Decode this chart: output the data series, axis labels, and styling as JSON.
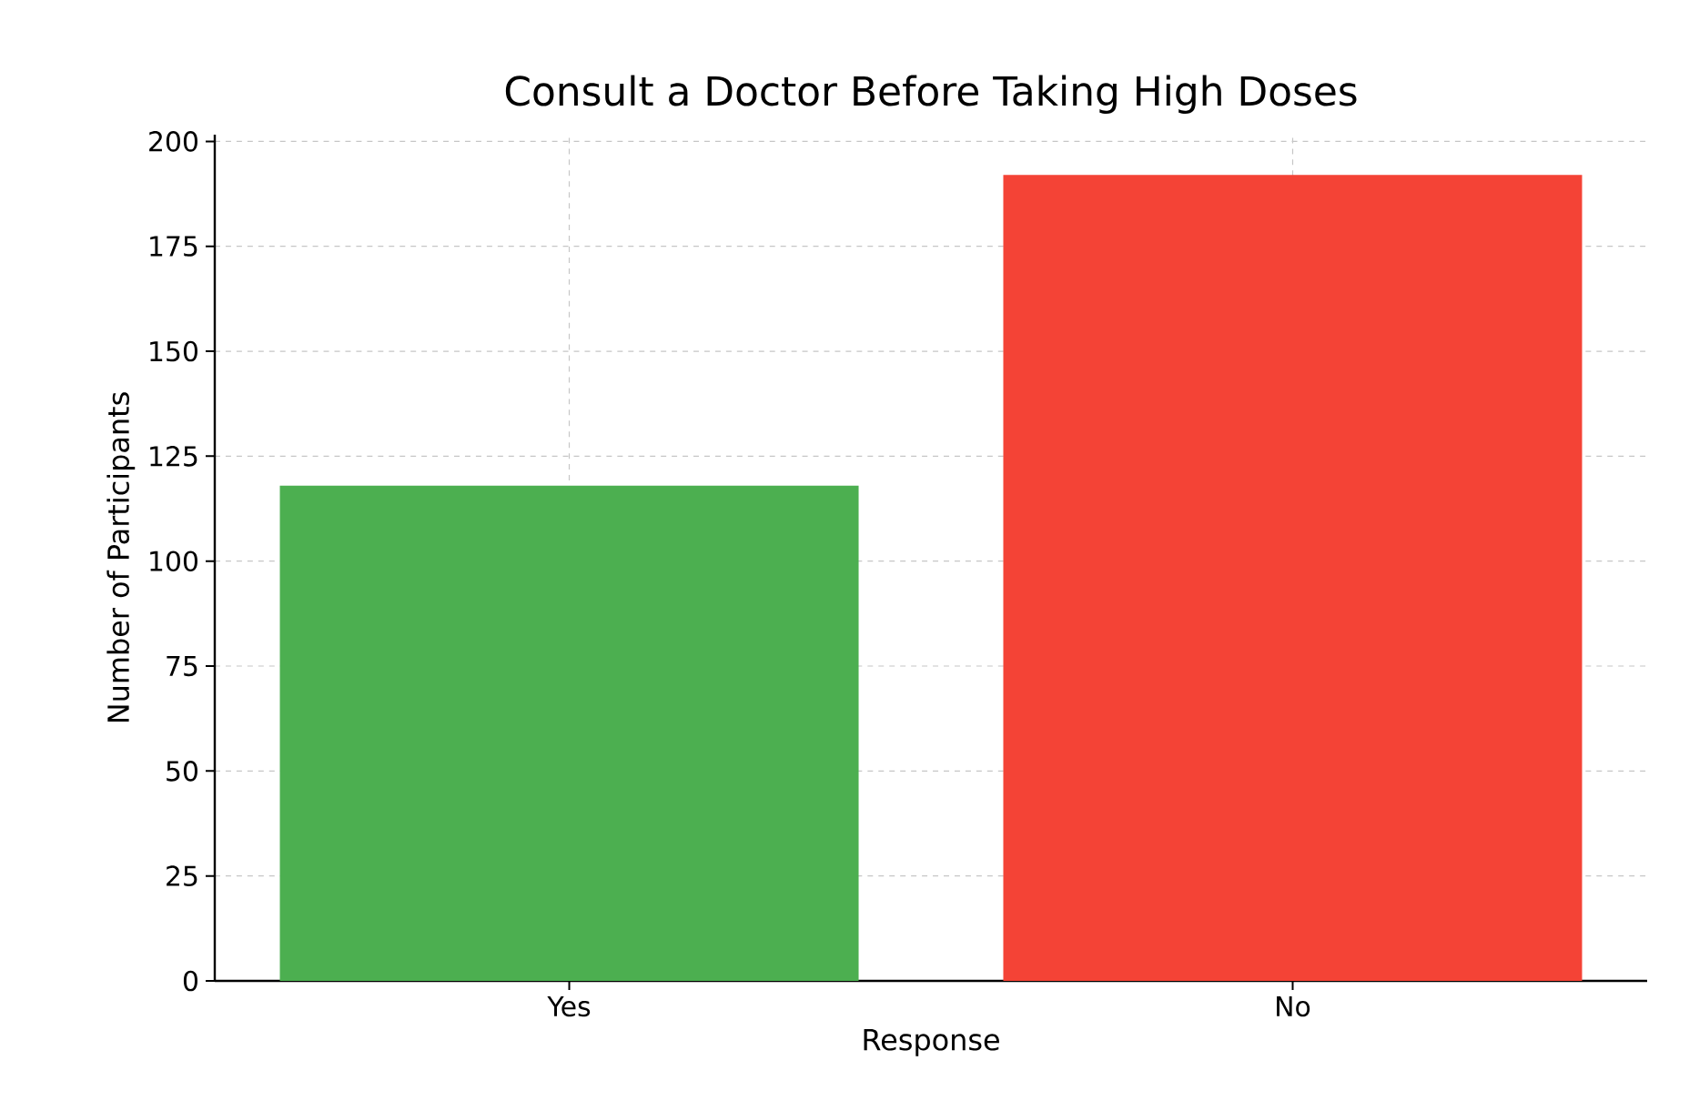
{
  "chart_data": {
    "type": "bar",
    "title": "Consult a Doctor Before Taking High Doses",
    "xlabel": "Response",
    "ylabel": "Number of Participants",
    "categories": [
      "Yes",
      "No"
    ],
    "values": [
      118,
      192
    ],
    "colors": [
      "#4caf50",
      "#f44336"
    ],
    "ylim": [
      0,
      201.6
    ],
    "yticks": [
      0,
      25,
      50,
      75,
      100,
      125,
      150,
      175,
      200
    ],
    "grid": true
  }
}
